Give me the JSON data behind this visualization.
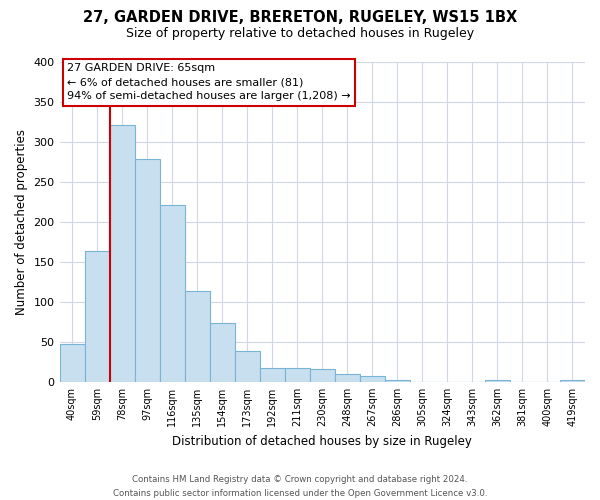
{
  "title": "27, GARDEN DRIVE, BRERETON, RUGELEY, WS15 1BX",
  "subtitle": "Size of property relative to detached houses in Rugeley",
  "xlabel": "Distribution of detached houses by size in Rugeley",
  "ylabel": "Number of detached properties",
  "bar_labels": [
    "40sqm",
    "59sqm",
    "78sqm",
    "97sqm",
    "116sqm",
    "135sqm",
    "154sqm",
    "173sqm",
    "192sqm",
    "211sqm",
    "230sqm",
    "248sqm",
    "267sqm",
    "286sqm",
    "305sqm",
    "324sqm",
    "343sqm",
    "362sqm",
    "381sqm",
    "400sqm",
    "419sqm"
  ],
  "bar_values": [
    47,
    163,
    321,
    278,
    221,
    114,
    74,
    39,
    18,
    18,
    16,
    10,
    7,
    3,
    0,
    0,
    0,
    3,
    0,
    0,
    3
  ],
  "bar_color": "#c8dff0",
  "bar_edge_color": "#7ab4d4",
  "property_line_x": 1.5,
  "property_line_color": "#cc0000",
  "ylim": [
    0,
    400
  ],
  "yticks": [
    0,
    50,
    100,
    150,
    200,
    250,
    300,
    350,
    400
  ],
  "annotation_title": "27 GARDEN DRIVE: 65sqm",
  "annotation_line1": "← 6% of detached houses are smaller (81)",
  "annotation_line2": "94% of semi-detached houses are larger (1,208) →",
  "footer1": "Contains HM Land Registry data © Crown copyright and database right 2024.",
  "footer2": "Contains public sector information licensed under the Open Government Licence v3.0.",
  "background_color": "#ffffff",
  "grid_color": "#d0d8e8"
}
